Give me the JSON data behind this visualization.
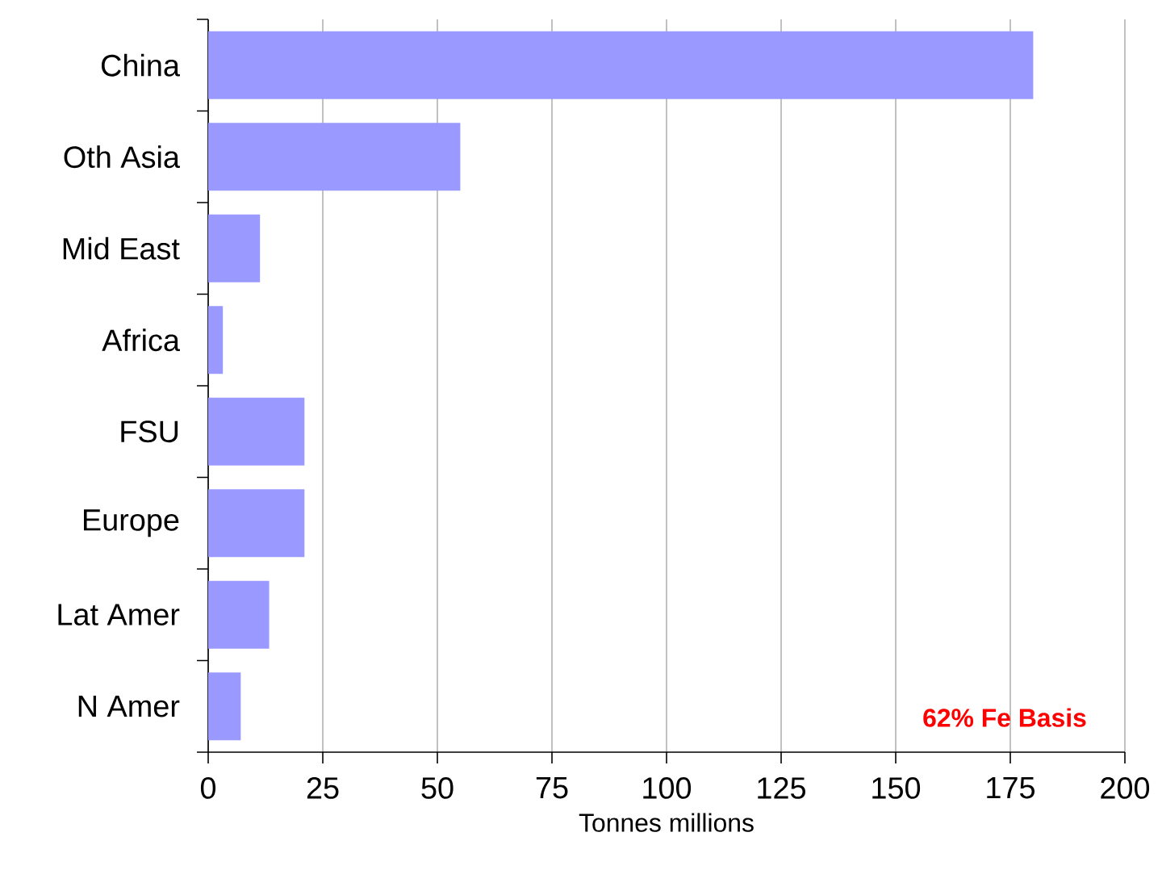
{
  "chart_data": {
    "type": "bar",
    "orientation": "horizontal",
    "xlabel": "Tonnes millions",
    "categories": [
      "China",
      "Oth Asia",
      "Mid East",
      "Africa",
      "FSU",
      "Europe",
      "Lat Amer",
      "N Amer"
    ],
    "values": [
      180,
      55,
      11.3,
      3.2,
      21,
      21,
      13.3,
      7.1
    ],
    "color": "#9999ff",
    "xlim": [
      0,
      200
    ],
    "xticks": [
      0,
      25,
      50,
      75,
      100,
      125,
      150,
      175,
      200
    ],
    "grid": "x",
    "annotations": [
      "62% Fe Basis"
    ]
  }
}
